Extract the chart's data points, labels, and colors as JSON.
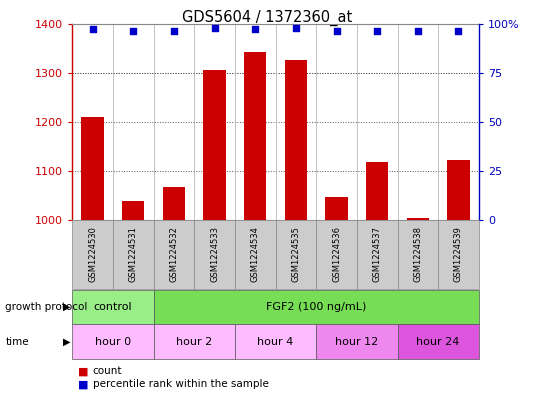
{
  "title": "GDS5604 / 1372360_at",
  "samples": [
    "GSM1224530",
    "GSM1224531",
    "GSM1224532",
    "GSM1224533",
    "GSM1224534",
    "GSM1224535",
    "GSM1224536",
    "GSM1224537",
    "GSM1224538",
    "GSM1224539"
  ],
  "counts": [
    1210,
    1038,
    1068,
    1305,
    1343,
    1325,
    1047,
    1118,
    1005,
    1122
  ],
  "percentiles": [
    97,
    96,
    96,
    98,
    97,
    98,
    96,
    96,
    96,
    96
  ],
  "ylim_left": [
    1000,
    1400
  ],
  "ylim_right": [
    0,
    100
  ],
  "yticks_left": [
    1000,
    1100,
    1200,
    1300,
    1400
  ],
  "yticks_right": [
    0,
    25,
    50,
    75,
    100
  ],
  "bar_color": "#cc0000",
  "dot_color": "#0000cc",
  "growth_protocol_labels": [
    {
      "label": "control",
      "start": 0,
      "end": 2,
      "color": "#99ee88"
    },
    {
      "label": "FGF2 (100 ng/mL)",
      "start": 2,
      "end": 10,
      "color": "#77dd55"
    }
  ],
  "time_labels": [
    {
      "label": "hour 0",
      "start": 0,
      "end": 2,
      "color": "#ffbbff"
    },
    {
      "label": "hour 2",
      "start": 2,
      "end": 4,
      "color": "#ffbbff"
    },
    {
      "label": "hour 4",
      "start": 4,
      "end": 6,
      "color": "#ffbbff"
    },
    {
      "label": "hour 12",
      "start": 6,
      "end": 8,
      "color": "#ee88ee"
    },
    {
      "label": "hour 24",
      "start": 8,
      "end": 10,
      "color": "#dd55dd"
    }
  ],
  "legend_count_color": "#cc0000",
  "legend_percentile_color": "#0000cc",
  "left_axis_color": "#cc0000",
  "right_axis_color": "#0000bb",
  "background_color": "#ffffff",
  "plot_bg_color": "#ffffff",
  "grid_color": "#555555",
  "sample_bg_color": "#cccccc"
}
